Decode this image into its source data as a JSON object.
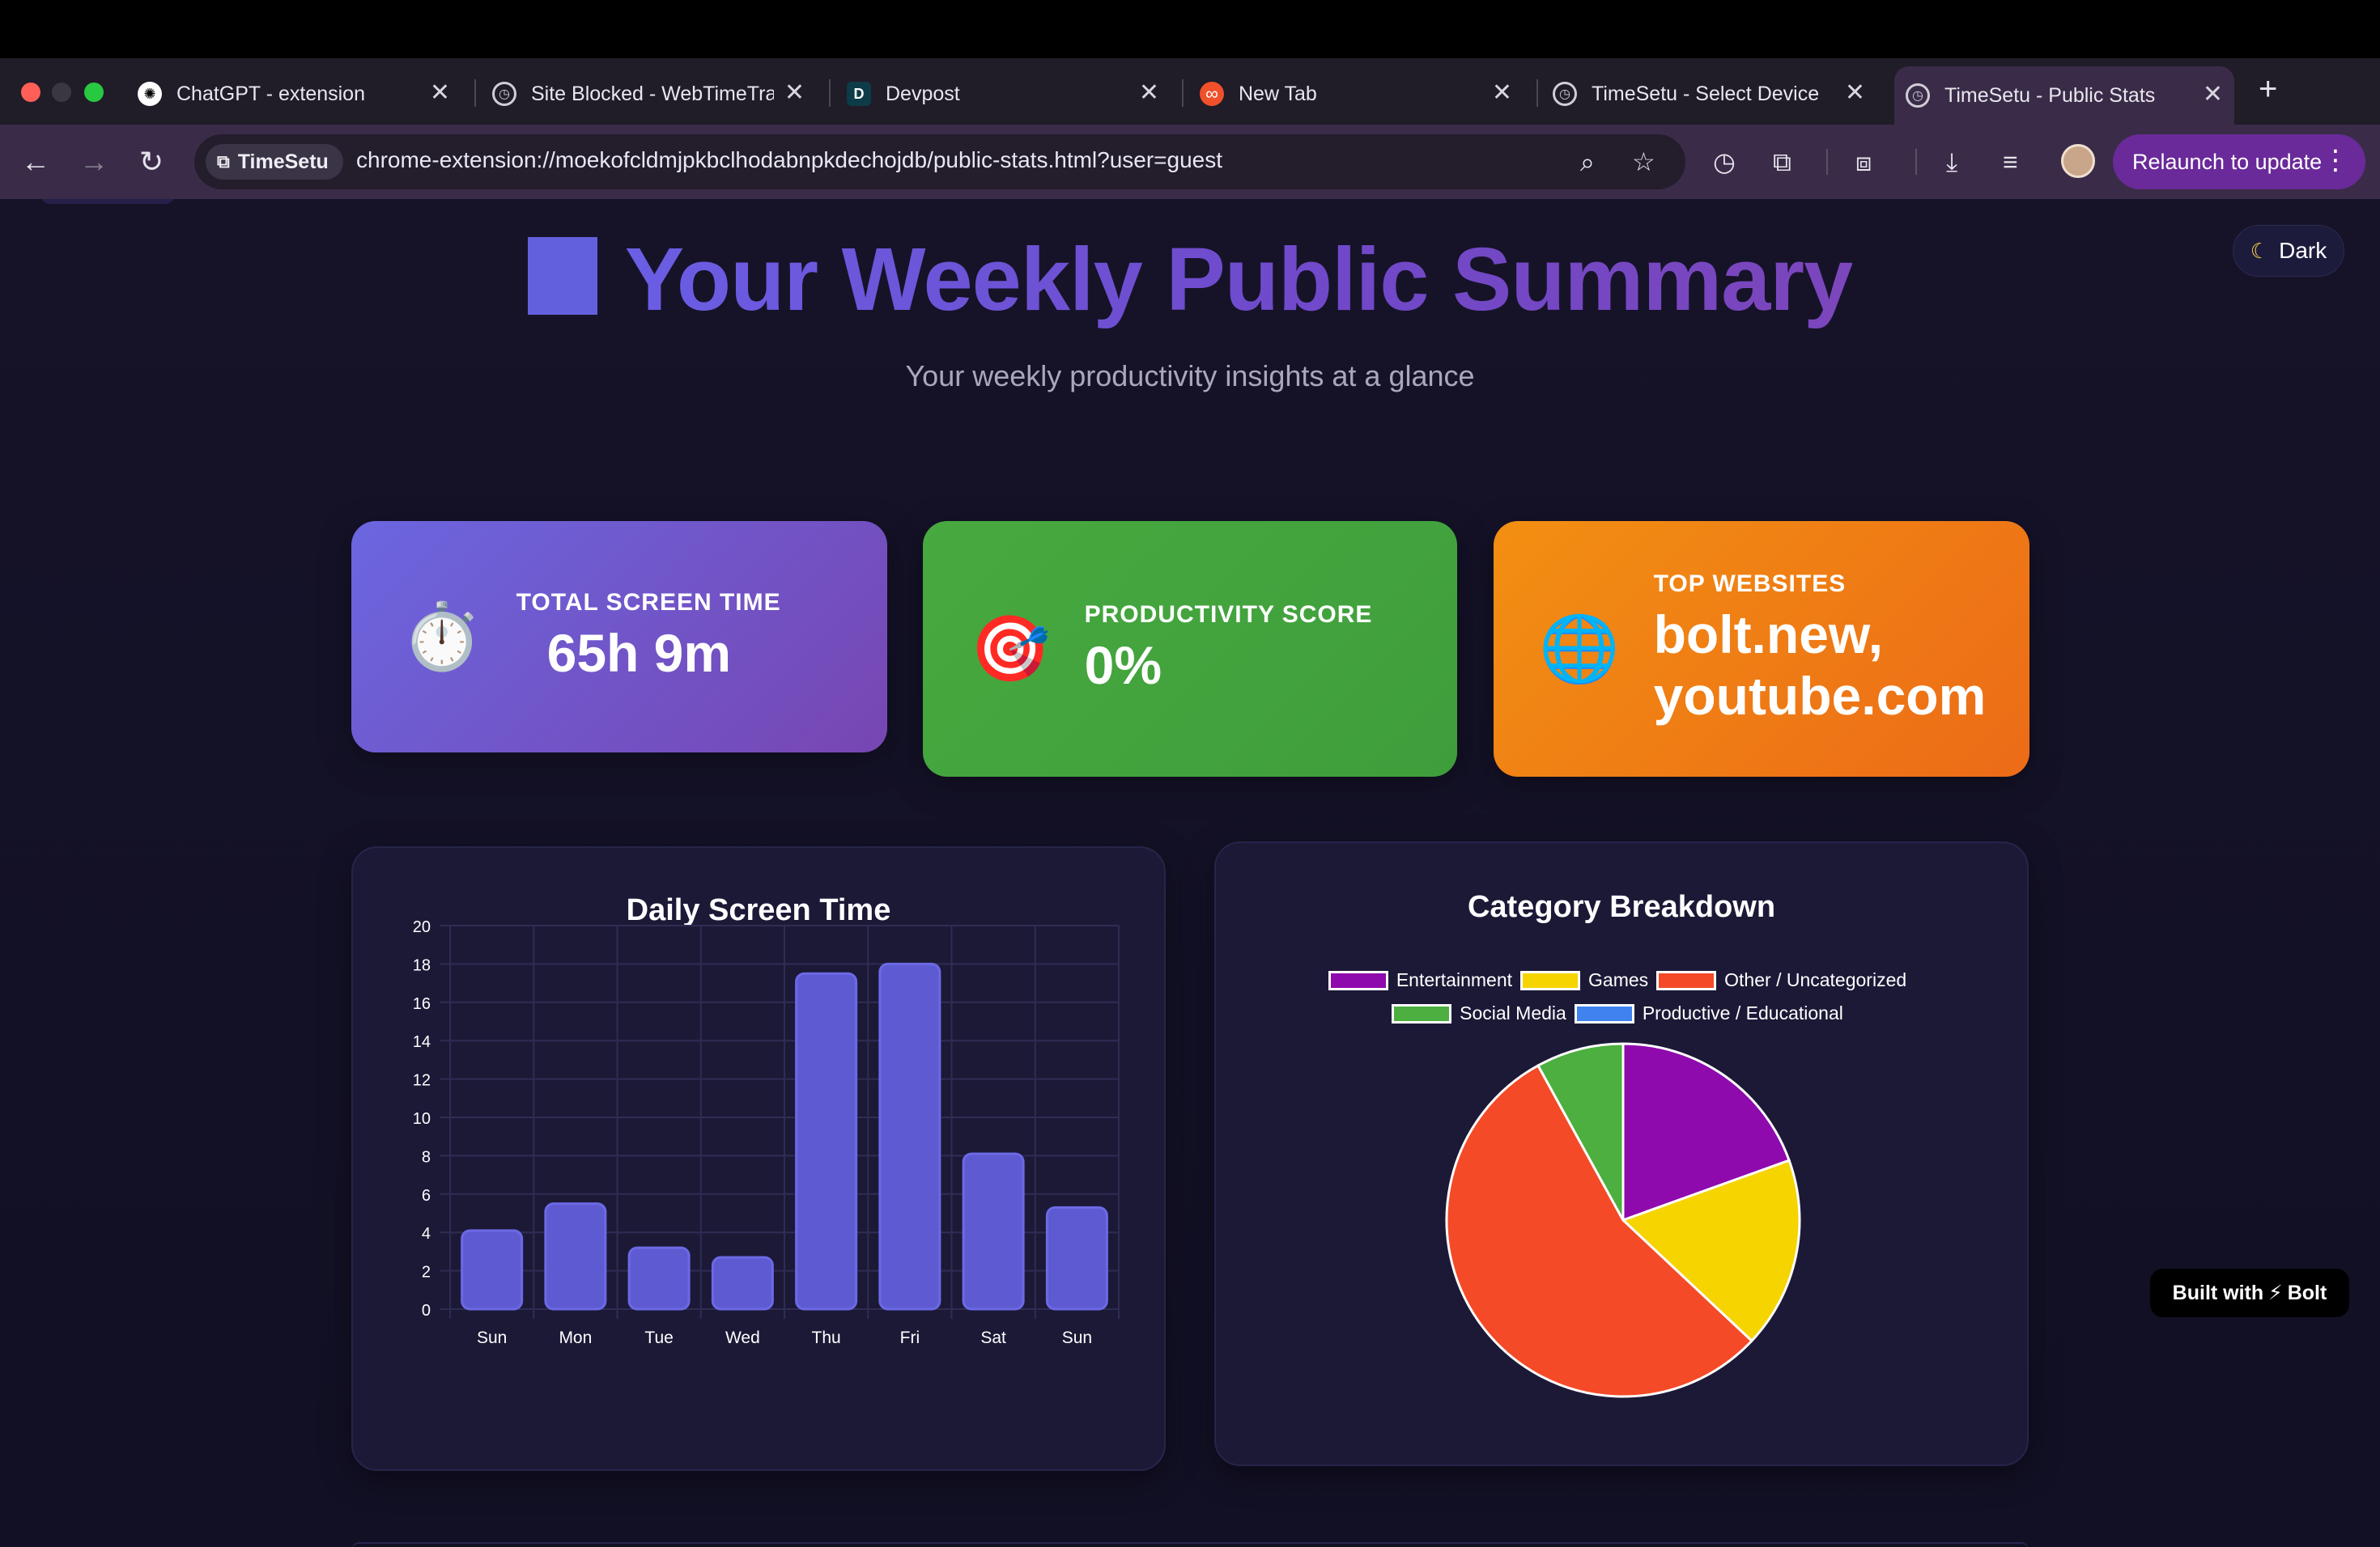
{
  "browser": {
    "tabs": [
      {
        "title": "ChatGPT - extension",
        "icon": "openai-icon"
      },
      {
        "title": "Site Blocked - WebTimeTra",
        "icon": "clock-icon"
      },
      {
        "title": "Devpost",
        "icon": "devpost-icon",
        "glyph": "D"
      },
      {
        "title": "New Tab",
        "icon": "infinity-icon"
      },
      {
        "title": "TimeSetu - Select Device",
        "icon": "clock-icon"
      },
      {
        "title": "TimeSetu - Public Stats",
        "icon": "clock-icon",
        "active": true
      }
    ],
    "close_glyph": "✕",
    "new_tab_glyph": "+",
    "extension_chip": "TimeSetu",
    "url": "chrome-extension://moekofcldmjpkbclhodabnpkdechojdb/public-stats.html?user=guest",
    "relaunch_label": "Relaunch to update"
  },
  "page": {
    "theme_toggle": "Dark",
    "title": "Your Weekly Public Summary",
    "subtitle": "Your weekly productivity insights at a glance",
    "stats": {
      "screen_time_label": "TOTAL SCREEN TIME",
      "screen_time_value": "65h 9m",
      "screen_time_icon": "⏱️",
      "productivity_label": "PRODUCTIVITY SCORE",
      "productivity_value": "0%",
      "productivity_icon": "🎯",
      "top_sites_label": "TOP WEBSITES",
      "top_sites_line1": "bolt.new,",
      "top_sites_line2": "youtube.com",
      "top_sites_icon": "🌐"
    },
    "built_with": {
      "prefix": "Built with",
      "bolt": "⚡",
      "suffix": "Bolt"
    }
  },
  "chart_data": [
    {
      "type": "bar",
      "title": "Daily Screen Time",
      "categories": [
        "Sun",
        "Mon",
        "Tue",
        "Wed",
        "Thu",
        "Fri",
        "Sat",
        "Sun"
      ],
      "values": [
        4.1,
        5.5,
        3.2,
        2.7,
        17.5,
        18.0,
        8.1,
        5.3
      ],
      "ylim": [
        0,
        20
      ],
      "yticks": [
        0,
        2,
        4,
        6,
        8,
        10,
        12,
        14,
        16,
        18,
        20
      ],
      "grid": true,
      "bar_color": "#5e5bd2"
    },
    {
      "type": "pie",
      "title": "Category Breakdown",
      "legend_position": "top",
      "slices": [
        {
          "label": "Entertainment",
          "value": 19.5,
          "color": "#8e0aad"
        },
        {
          "label": "Games",
          "value": 17.5,
          "color": "#f5d400"
        },
        {
          "label": "Other / Uncategorized",
          "value": 55.0,
          "color": "#f44a27"
        },
        {
          "label": "Social Media",
          "value": 8.0,
          "color": "#4caf3f"
        },
        {
          "label": "Productive / Educational",
          "value": 0.0,
          "color": "#3f82f0"
        }
      ]
    }
  ]
}
